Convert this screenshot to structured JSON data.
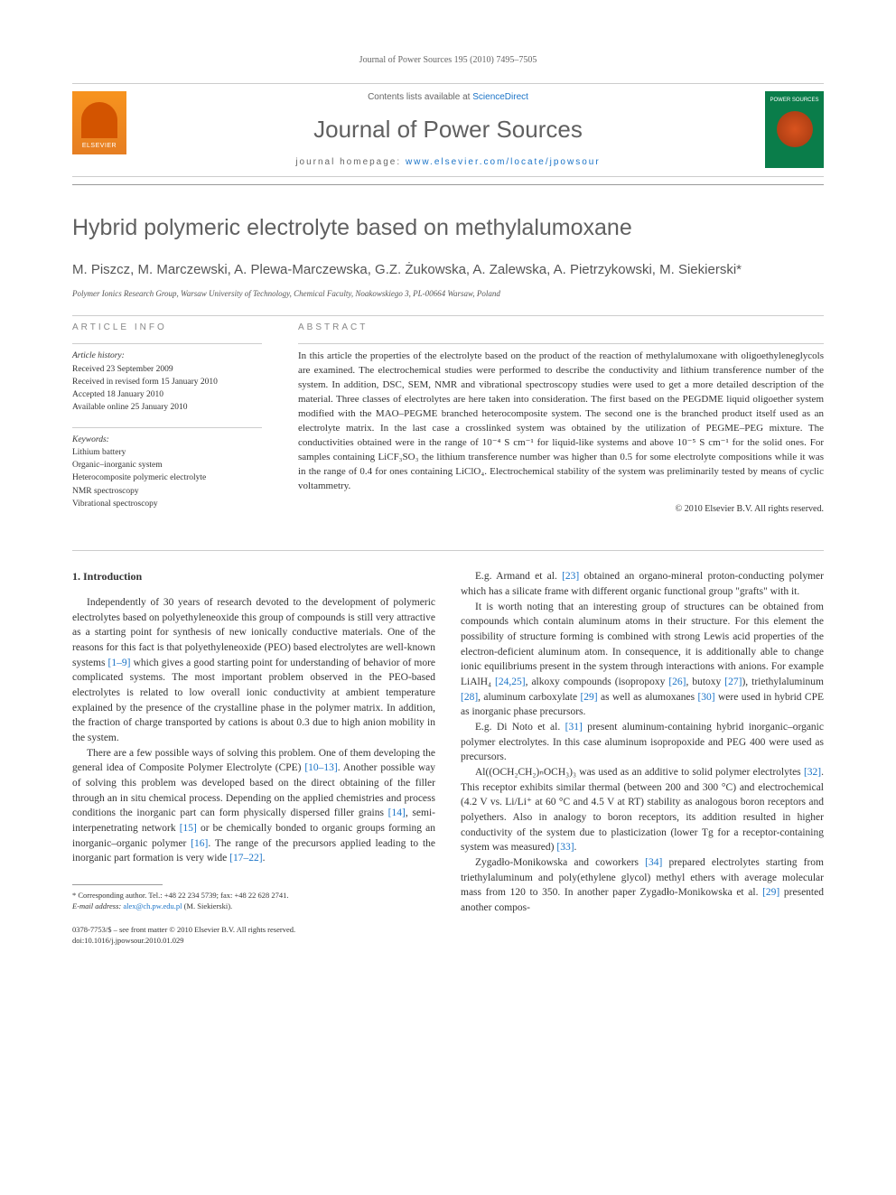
{
  "header": {
    "citation": "Journal of Power Sources 195 (2010) 7495–7505"
  },
  "contents_bar": {
    "line_prefix": "Contents lists available at ",
    "line_link": "ScienceDirect",
    "journal_name": "Journal of Power Sources",
    "homepage_prefix": "journal homepage: ",
    "homepage_link": "www.elsevier.com/locate/jpowsour",
    "publisher_label": "ELSEVIER",
    "cover_label": "POWER SOURCES"
  },
  "article": {
    "title": "Hybrid polymeric electrolyte based on methylalumoxane",
    "authors": "M. Piszcz, M. Marczewski, A. Plewa-Marczewska, G.Z. Żukowska, A. Zalewska, A. Pietrzykowski, M. Siekierski*",
    "affiliation": "Polymer Ionics Research Group, Warsaw University of Technology, Chemical Faculty, Noakowskiego 3, PL-00664 Warsaw, Poland"
  },
  "info": {
    "label": "article info",
    "history_heading": "Article history:",
    "received": "Received 23 September 2009",
    "revised": "Received in revised form 15 January 2010",
    "accepted": "Accepted 18 January 2010",
    "online": "Available online 25 January 2010",
    "keywords_heading": "Keywords:",
    "kw1": "Lithium battery",
    "kw2": "Organic–inorganic system",
    "kw3": "Heterocomposite polymeric electrolyte",
    "kw4": "NMR spectroscopy",
    "kw5": "Vibrational spectroscopy"
  },
  "abstract": {
    "label": "abstract",
    "text": "In this article the properties of the electrolyte based on the product of the reaction of methylalumoxane with oligoethyleneglycols are examined. The electrochemical studies were performed to describe the conductivity and lithium transference number of the system. In addition, DSC, SEM, NMR and vibrational spectroscopy studies were used to get a more detailed description of the material. Three classes of electrolytes are here taken into consideration. The first based on the PEGDME liquid oligoether system modified with the MAO–PEGME branched heterocomposite system. The second one is the branched product itself used as an electrolyte matrix. In the last case a crosslinked system was obtained by the utilization of PEGME–PEG mixture. The conductivities obtained were in the range of 10⁻⁴ S cm⁻¹ for liquid-like systems and above 10⁻⁵ S cm⁻¹ for the solid ones. For samples containing LiCF₃SO₃ the lithium transference number was higher than 0.5 for some electrolyte compositions while it was in the range of 0.4 for ones containing LiClO₄. Electrochemical stability of the system was preliminarily tested by means of cyclic voltammetry.",
    "copyright": "© 2010 Elsevier B.V. All rights reserved."
  },
  "body": {
    "section_heading": "1. Introduction",
    "left_p1": "Independently of 30 years of research devoted to the development of polymeric electrolytes based on polyethyleneoxide this group of compounds is still very attractive as a starting point for synthesis of new ionically conductive materials. One of the reasons for this fact is that polyethyleneoxide (PEO) based electrolytes are well-known systems ",
    "left_p1_cite": "[1–9]",
    "left_p1b": " which gives a good starting point for understanding of behavior of more complicated systems. The most important problem observed in the PEO-based electrolytes is related to low overall ionic conductivity at ambient temperature explained by the presence of the crystalline phase in the polymer matrix. In addition, the fraction of charge transported by cations is about 0.3 due to high anion mobility in the system.",
    "left_p2": "There are a few possible ways of solving this problem. One of them developing the general idea of Composite Polymer Electrolyte (CPE) ",
    "left_p2_cite1": "[10–13]",
    "left_p2b": ". Another possible way of solving this problem was developed based on the direct obtaining of the filler through an in situ chemical process. Depending on the applied chemistries and process conditions the inorganic part can form physically dispersed filler grains ",
    "left_p2_cite2": "[14]",
    "left_p2c": ", semi-interpenetrating network ",
    "left_p2_cite3": "[15]",
    "left_p2d": " or be chemically bonded to organic groups forming an inorganic–organic polymer ",
    "left_p2_cite4": "[16]",
    "left_p2e": ". The range of the precursors applied leading to the inorganic part formation is very wide ",
    "left_p2_cite5": "[17–22]",
    "left_p2f": ".",
    "right_p1": "E.g. Armand et al. ",
    "right_p1_cite": "[23]",
    "right_p1b": " obtained an organo-mineral proton-conducting polymer which has a silicate frame with different organic functional group \"grafts\" with it.",
    "right_p2": "It is worth noting that an interesting group of structures can be obtained from compounds which contain aluminum atoms in their structure. For this element the possibility of structure forming is combined with strong Lewis acid properties of the electron-deficient aluminum atom. In consequence, it is additionally able to change ionic equilibriums present in the system through interactions with anions. For example LiAlH₄ ",
    "right_p2_cite1": "[24,25]",
    "right_p2b": ", alkoxy compounds (isopropoxy ",
    "right_p2_cite2": "[26]",
    "right_p2c": ", butoxy ",
    "right_p2_cite3": "[27]",
    "right_p2d": "), triethylaluminum ",
    "right_p2_cite4": "[28]",
    "right_p2e": ", aluminum carboxylate ",
    "right_p2_cite5": "[29]",
    "right_p2f": " as well as alumoxanes ",
    "right_p2_cite6": "[30]",
    "right_p2g": " were used in hybrid CPE as inorganic phase precursors.",
    "right_p3": "E.g. Di Noto et al. ",
    "right_p3_cite": "[31]",
    "right_p3b": " present aluminum-containing hybrid inorganic–organic polymer electrolytes. In this case aluminum isopropoxide and PEG 400 were used as precursors.",
    "right_p4": "Al((OCH₂CH₂)ₙOCH₃)₃ was used as an additive to solid polymer electrolytes ",
    "right_p4_cite": "[32]",
    "right_p4b": ". This receptor exhibits similar thermal (between 200 and 300 °C) and electrochemical (4.2 V vs. Li/Li⁺ at 60 °C and 4.5 V at RT) stability as analogous boron receptors and polyethers. Also in analogy to boron receptors, its addition resulted in higher conductivity of the system due to plasticization (lower Tg for a receptor-containing system was measured) ",
    "right_p4_cite2": "[33]",
    "right_p4c": ".",
    "right_p5": "Zygadło-Monikowska and coworkers ",
    "right_p5_cite": "[34]",
    "right_p5b": " prepared electrolytes starting from triethylaluminum and poly(ethylene glycol) methyl ethers with average molecular mass from 120 to 350. In another paper Zygadło-Monikowska et al. ",
    "right_p5_cite2": "[29]",
    "right_p5c": " presented another compos-"
  },
  "footnote": {
    "corr": "* Corresponding author. Tel.: +48 22 234 5739; fax: +48 22 628 2741.",
    "email_label": "E-mail address: ",
    "email": "alex@ch.pw.edu.pl",
    "email_suffix": " (M. Siekierski).",
    "issn": "0378-7753/$ – see front matter © 2010 Elsevier B.V. All rights reserved.",
    "doi": "doi:10.1016/j.jpowsour.2010.01.029"
  },
  "colors": {
    "link": "#1a73c7",
    "text": "#333333",
    "muted": "#666666",
    "heading": "#606060",
    "elsevier_orange": "#f7931e",
    "cover_green": "#0a7d4a"
  }
}
